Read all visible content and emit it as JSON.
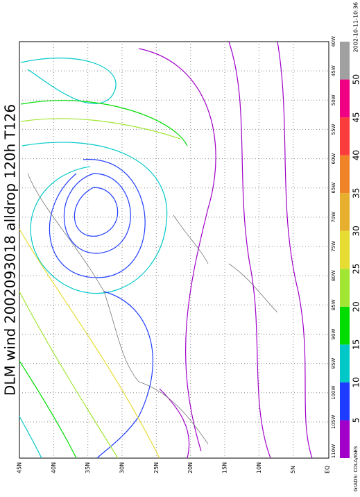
{
  "title": "DLM wind 2002093018 alldrop 120h T126",
  "lat_labels": [
    "45N",
    "40N",
    "35N",
    "30N",
    "25N",
    "20N",
    "15N",
    "10N",
    "5N",
    "EQ"
  ],
  "lon_labels": [
    "40W",
    "45W",
    "50W",
    "55W",
    "60W",
    "65W",
    "70W",
    "75W",
    "80W",
    "85W",
    "90W",
    "95W",
    "100W",
    "105W",
    "110W"
  ],
  "colorbar": {
    "labels": [
      "5",
      "10",
      "15",
      "20",
      "25",
      "30",
      "35",
      "40",
      "45",
      "50"
    ],
    "colors": [
      "#a000c8",
      "#1e3cff",
      "#00c8c8",
      "#00dc00",
      "#a0e632",
      "#e6dc32",
      "#e6af2d",
      "#f08228",
      "#fa3c3c",
      "#f00082",
      "#a0a0a0"
    ]
  },
  "timestamp": "2002-10-11-10:36",
  "credit": "GrADS: COLA/IGES"
}
